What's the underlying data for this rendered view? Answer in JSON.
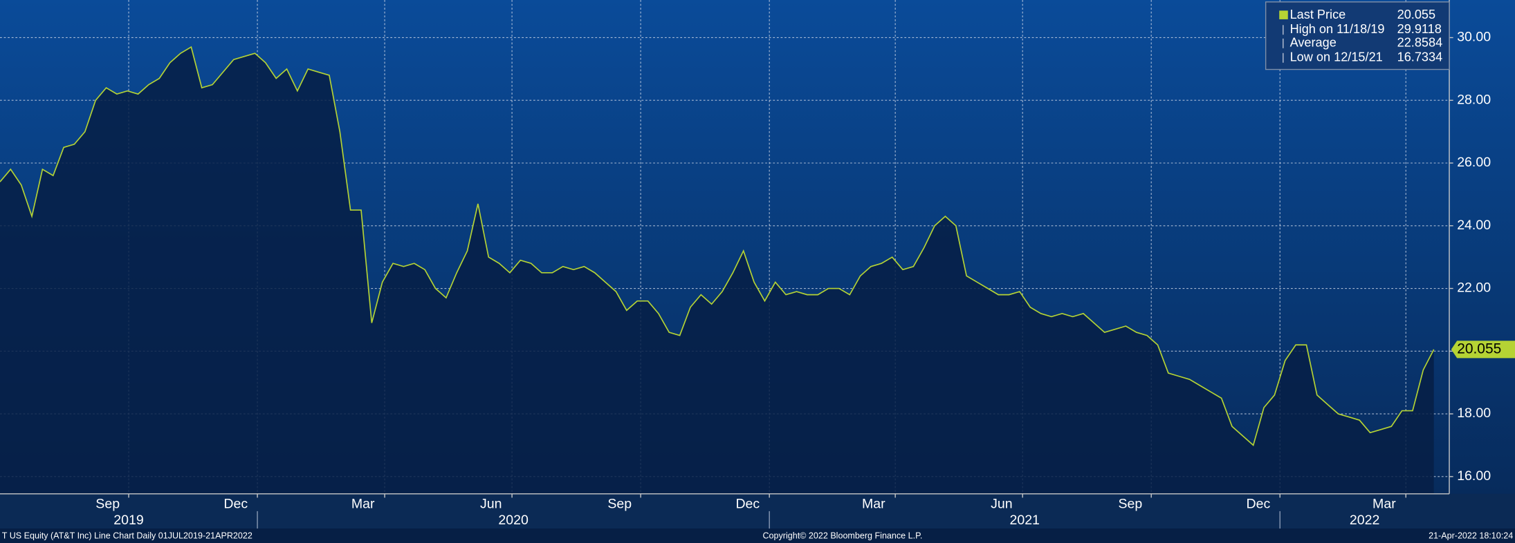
{
  "chart_data": {
    "type": "line",
    "footer_left": "T US Equity (AT&T Inc) Line Chart  Daily 01JUL2019-21APR2022",
    "footer_center": "Copyright© 2022 Bloomberg Finance L.P.",
    "footer_right": "21-Apr-2022 18:10:24",
    "xlim": [
      "2019-07-01",
      "2022-04-21"
    ],
    "xticks": [
      {
        "value": "2019-09",
        "label": "Sep"
      },
      {
        "value": "2019-12",
        "label": "Dec"
      },
      {
        "value": "2020-03",
        "label": "Mar"
      },
      {
        "value": "2020-06",
        "label": "Jun"
      },
      {
        "value": "2020-09",
        "label": "Sep"
      },
      {
        "value": "2020-12",
        "label": "Dec"
      },
      {
        "value": "2021-03",
        "label": "Mar"
      },
      {
        "value": "2021-06",
        "label": "Jun"
      },
      {
        "value": "2021-09",
        "label": "Sep"
      },
      {
        "value": "2021-12",
        "label": "Dec"
      },
      {
        "value": "2022-03",
        "label": "Mar"
      }
    ],
    "years": [
      2019,
      2020,
      2021,
      2022
    ],
    "ylim": [
      15.45,
      31.2
    ],
    "yticks": [
      {
        "value": 16,
        "label": "16.00"
      },
      {
        "value": 18,
        "label": "18.00"
      },
      {
        "value": 20,
        "label": "20.00"
      },
      {
        "value": 22,
        "label": "22.00"
      },
      {
        "value": 24,
        "label": "24.00"
      },
      {
        "value": 26,
        "label": "26.00"
      },
      {
        "value": 28,
        "label": "28.00"
      },
      {
        "value": 30,
        "label": "30.00"
      }
    ],
    "grid": true,
    "series": [
      {
        "name": "Last Price",
        "color": "#b5d334",
        "values": [
          25.4,
          25.8,
          25.3,
          24.3,
          25.8,
          25.6,
          26.5,
          26.6,
          27.0,
          28.0,
          28.4,
          28.2,
          28.3,
          28.2,
          28.5,
          28.7,
          29.2,
          29.5,
          29.7,
          28.4,
          28.5,
          28.9,
          29.3,
          29.4,
          29.5,
          29.2,
          28.7,
          29.0,
          28.3,
          29.0,
          28.9,
          28.8,
          27.0,
          24.5,
          24.5,
          20.9,
          22.2,
          22.8,
          22.7,
          22.8,
          22.6,
          22.0,
          21.7,
          22.5,
          23.2,
          24.7,
          23.0,
          22.8,
          22.5,
          22.9,
          22.8,
          22.5,
          22.5,
          22.7,
          22.6,
          22.7,
          22.5,
          22.2,
          21.9,
          21.3,
          21.6,
          21.6,
          21.2,
          20.6,
          20.5,
          21.4,
          21.8,
          21.5,
          21.9,
          22.5,
          23.2,
          22.2,
          21.6,
          22.2,
          21.8,
          21.9,
          21.8,
          21.8,
          22.0,
          22.0,
          21.8,
          22.4,
          22.7,
          22.8,
          23.0,
          22.6,
          22.7,
          23.3,
          24.0,
          24.3,
          24.0,
          22.4,
          22.2,
          22.0,
          21.8,
          21.8,
          21.9,
          21.4,
          21.2,
          21.1,
          21.2,
          21.1,
          21.2,
          20.9,
          20.6,
          20.7,
          20.8,
          20.6,
          20.5,
          20.2,
          19.3,
          19.2,
          19.1,
          18.9,
          18.7,
          18.5,
          17.6,
          17.3,
          17.0,
          18.2,
          18.6,
          19.7,
          20.2,
          20.2,
          18.6,
          18.3,
          18.0,
          17.9,
          17.8,
          17.4,
          17.5,
          17.6,
          18.1,
          18.1,
          19.4,
          20.055
        ]
      }
    ],
    "legend_stats": [
      {
        "label": "High on 11/18/19",
        "value": 29.9118
      },
      {
        "label": "Average",
        "value": 22.8584
      },
      {
        "label": "Low on 12/15/21",
        "value": 16.7334
      }
    ]
  }
}
